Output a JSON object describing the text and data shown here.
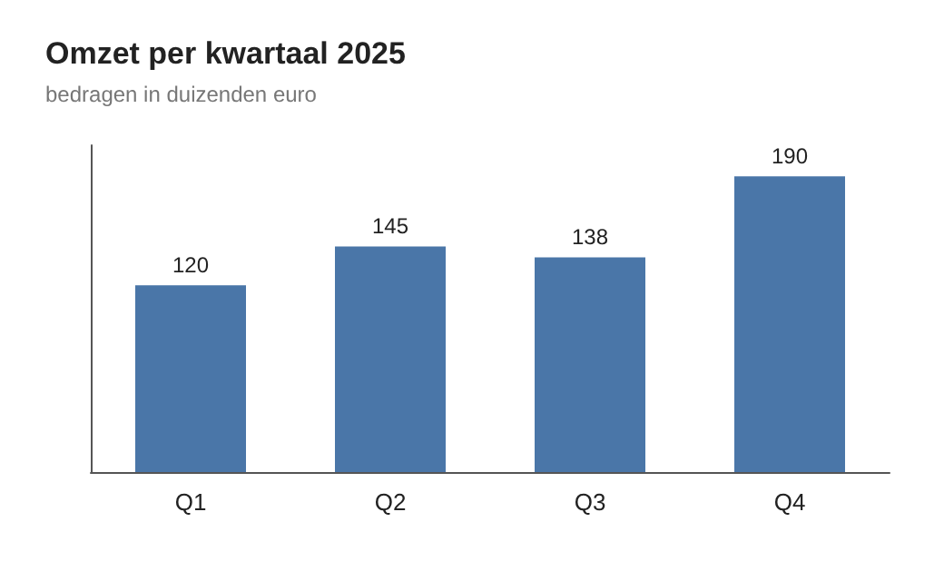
{
  "chart_data": {
    "type": "bar",
    "title": "Omzet per kwartaal 2025",
    "subtitle": "bedragen in duizenden euro",
    "categories": [
      "Q1",
      "Q2",
      "Q3",
      "Q4"
    ],
    "values": [
      120,
      145,
      138,
      190
    ],
    "color": "#4a76a8",
    "data_labels": true
  }
}
